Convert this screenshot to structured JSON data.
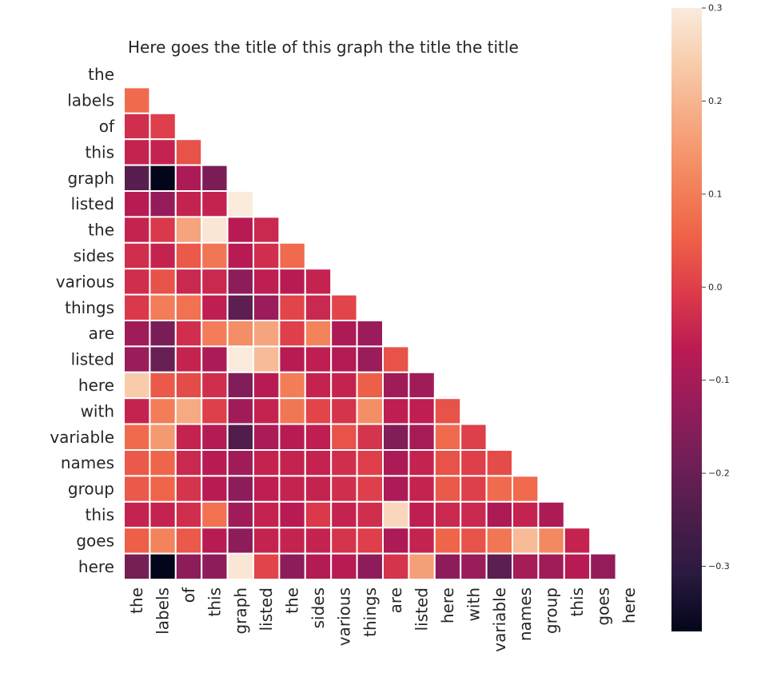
{
  "chart_data": {
    "type": "heatmap",
    "title": "Here goes the title of this graph the title the title",
    "xlabel": "",
    "ylabel": "",
    "row_labels": [
      "the",
      "labels",
      "of",
      "this",
      "graph",
      "listed",
      "the",
      "sides",
      "various",
      "things",
      "are",
      "listed",
      "here",
      "with",
      "variable",
      "names",
      "group",
      "this",
      "goes",
      "here"
    ],
    "col_labels": [
      "the",
      "labels",
      "of",
      "this",
      "graph",
      "listed",
      "the",
      "sides",
      "various",
      "things",
      "are",
      "listed",
      "here",
      "with",
      "variable",
      "names",
      "group",
      "this",
      "goes",
      "here"
    ],
    "mask": "upper-triangle-including-diagonal",
    "grid_lines": "white",
    "colormap": [
      "#03051a",
      "#2a1a3f",
      "#4c1d4b",
      "#701f57",
      "#961c5b",
      "#bb1b52",
      "#dd3c4a",
      "#ef6348",
      "#f3875e",
      "#f6a982",
      "#f8cbaa",
      "#faebdd"
    ],
    "vmin": -0.37,
    "vmax": 0.3,
    "values": [
      [],
      [
        0.07
      ],
      [
        -0.03,
        0.0
      ],
      [
        -0.05,
        -0.05,
        0.03
      ],
      [
        -0.23,
        -0.37,
        -0.09,
        -0.17
      ],
      [
        -0.07,
        -0.13,
        -0.05,
        -0.05,
        0.3
      ],
      [
        -0.05,
        -0.01,
        0.17,
        0.29,
        -0.07,
        -0.04
      ],
      [
        -0.03,
        -0.05,
        0.04,
        0.09,
        -0.07,
        -0.03,
        0.07
      ],
      [
        -0.03,
        0.03,
        -0.04,
        -0.04,
        -0.14,
        -0.06,
        -0.07,
        -0.05
      ],
      [
        -0.01,
        0.1,
        0.08,
        -0.06,
        -0.22,
        -0.12,
        0.01,
        -0.04,
        0.01
      ],
      [
        -0.11,
        -0.17,
        -0.03,
        0.1,
        0.13,
        0.17,
        0.0,
        0.11,
        -0.09,
        -0.12
      ],
      [
        -0.12,
        -0.2,
        -0.05,
        -0.09,
        0.3,
        0.21,
        -0.07,
        -0.06,
        -0.08,
        -0.12,
        0.03
      ],
      [
        0.24,
        0.04,
        0.02,
        -0.03,
        -0.16,
        -0.07,
        0.1,
        -0.05,
        -0.05,
        0.05,
        -0.11,
        -0.11
      ],
      [
        -0.05,
        0.1,
        0.18,
        0.0,
        -0.11,
        -0.05,
        0.09,
        0.01,
        -0.02,
        0.13,
        -0.06,
        -0.06,
        0.03
      ],
      [
        0.07,
        0.15,
        -0.05,
        -0.08,
        -0.24,
        -0.09,
        -0.07,
        -0.06,
        0.03,
        -0.02,
        -0.16,
        -0.1,
        0.07,
        0.0
      ],
      [
        0.04,
        0.06,
        -0.04,
        -0.07,
        -0.11,
        -0.05,
        -0.05,
        -0.05,
        -0.03,
        0.0,
        -0.09,
        -0.05,
        0.03,
        0.0,
        0.02
      ],
      [
        0.04,
        0.06,
        -0.02,
        -0.07,
        -0.14,
        -0.06,
        -0.05,
        -0.05,
        -0.03,
        0.0,
        -0.09,
        -0.05,
        0.04,
        0.0,
        0.07,
        0.07
      ],
      [
        -0.05,
        -0.05,
        -0.03,
        0.08,
        -0.11,
        -0.05,
        -0.07,
        -0.01,
        -0.05,
        -0.03,
        0.26,
        -0.06,
        -0.04,
        -0.04,
        -0.09,
        -0.05,
        -0.09
      ],
      [
        0.05,
        0.11,
        0.04,
        -0.07,
        -0.14,
        -0.05,
        -0.05,
        -0.05,
        -0.02,
        0.0,
        -0.09,
        -0.05,
        0.06,
        0.03,
        0.09,
        0.21,
        0.12,
        -0.05
      ],
      [
        -0.18,
        -0.37,
        -0.14,
        -0.14,
        0.29,
        0.01,
        -0.14,
        -0.08,
        -0.07,
        -0.14,
        -0.02,
        0.16,
        -0.14,
        -0.12,
        -0.22,
        -0.1,
        -0.11,
        -0.07,
        -0.13
      ]
    ],
    "colorbar": {
      "ticks": [
        0.3,
        0.2,
        0.1,
        0.0,
        -0.1,
        -0.2,
        -0.3
      ],
      "tick_labels": [
        "0.3",
        "0.2",
        "0.1",
        "0.0",
        "−0.1",
        "−0.2",
        "−0.3"
      ]
    }
  }
}
